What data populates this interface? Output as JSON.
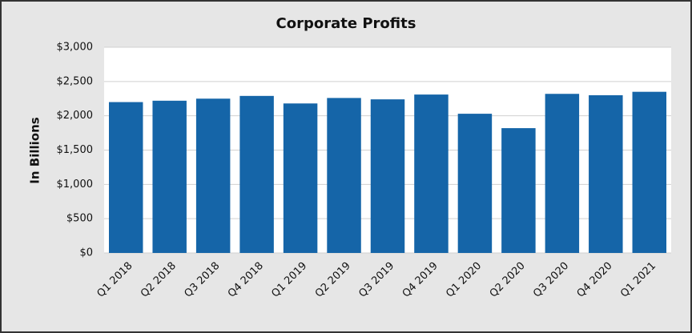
{
  "chart_data": {
    "type": "bar",
    "title": "Corporate Profits",
    "y_label": "In Billions",
    "categories": [
      "Q1 2018",
      "Q2 2018",
      "Q3 2018",
      "Q4 2018",
      "Q1 2019",
      "Q2 2019",
      "Q3 2019",
      "Q4 2019",
      "Q1 2020",
      "Q2 2020",
      "Q3 2020",
      "Q4 2020",
      "Q1 2021"
    ],
    "values": [
      2200,
      2220,
      2250,
      2290,
      2180,
      2260,
      2240,
      2310,
      2030,
      1820,
      2320,
      2300,
      2350
    ],
    "color": "#1565a8",
    "ylim": [
      0,
      3000
    ],
    "yticks": [
      {
        "value": 0,
        "label": "$0"
      },
      {
        "value": 500,
        "label": "$500"
      },
      {
        "value": 1000,
        "label": "$1,000"
      },
      {
        "value": 1500,
        "label": "$1,500"
      },
      {
        "value": 2000,
        "label": "$2,000"
      },
      {
        "value": 2500,
        "label": "$2,500"
      },
      {
        "value": 3000,
        "label": "$3,000"
      }
    ],
    "grid": true
  }
}
